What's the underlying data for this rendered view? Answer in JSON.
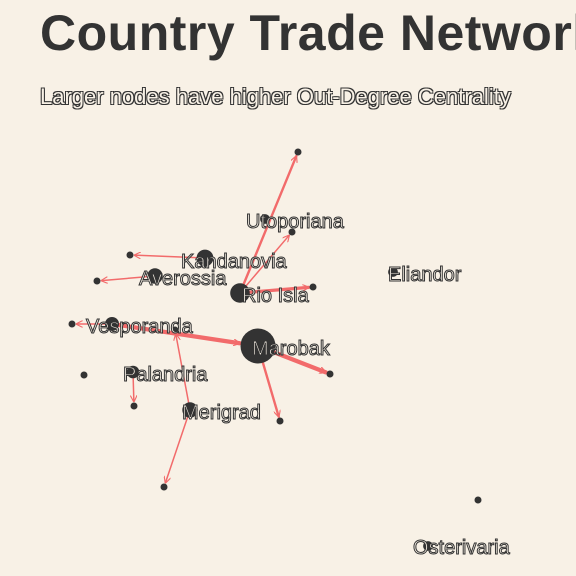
{
  "title": "Country Trade Network",
  "subtitle": "Larger nodes have higher Out-Degree Centrality",
  "colors": {
    "background": "#f8f1e6",
    "node": "#333333",
    "edge": "#f26b6b"
  },
  "nodes": [
    {
      "id": "Marobak",
      "label": "Marobak",
      "centrality": 1.0
    },
    {
      "id": "Rio Isla",
      "label": "Rio Isla",
      "centrality": 0.45
    },
    {
      "id": "Kandanovia",
      "label": "Kandanovia",
      "centrality": 0.35
    },
    {
      "id": "Averossia",
      "label": "Averossia",
      "centrality": 0.3
    },
    {
      "id": "Vesporanda",
      "label": "Vesporanda",
      "centrality": 0.25
    },
    {
      "id": "Merigrad",
      "label": "Merigrad",
      "centrality": 0.3
    },
    {
      "id": "Palandria",
      "label": "Palandria",
      "centrality": 0.2
    },
    {
      "id": "Utoporiana",
      "label": "Utoporiana",
      "centrality": 0.1
    },
    {
      "id": "Eliandor",
      "label": "Eliandor",
      "centrality": 0.1
    },
    {
      "id": "Osterivaria",
      "label": "Osterivaria",
      "centrality": 0.1
    },
    {
      "id": "n1",
      "label": "",
      "centrality": 0.0
    },
    {
      "id": "n2",
      "label": "",
      "centrality": 0.0
    },
    {
      "id": "n3",
      "label": "",
      "centrality": 0.0
    },
    {
      "id": "n4",
      "label": "",
      "centrality": 0.0
    },
    {
      "id": "n5",
      "label": "",
      "centrality": 0.0
    },
    {
      "id": "n6",
      "label": "",
      "centrality": 0.0
    },
    {
      "id": "n7",
      "label": "",
      "centrality": 0.0
    },
    {
      "id": "n8",
      "label": "",
      "centrality": 0.0
    },
    {
      "id": "n9",
      "label": "",
      "centrality": 0.0
    },
    {
      "id": "n10",
      "label": "",
      "centrality": 0.0
    },
    {
      "id": "n11",
      "label": "",
      "centrality": 0.0
    },
    {
      "id": "n12",
      "label": "",
      "centrality": 0.0
    },
    {
      "id": "n13",
      "label": "",
      "centrality": 0.0
    }
  ],
  "edges": [
    {
      "source": "Marobak",
      "target": "n2",
      "weight": 4
    },
    {
      "source": "Marobak",
      "target": "n4",
      "weight": 2
    },
    {
      "source": "Vesporanda",
      "target": "Marobak",
      "weight": 4
    },
    {
      "source": "Rio Isla",
      "target": "n3",
      "weight": 3
    },
    {
      "source": "Rio Isla",
      "target": "n1",
      "weight": 2
    },
    {
      "source": "Rio Isla",
      "target": "n5",
      "weight": 1
    },
    {
      "source": "Kandanovia",
      "target": "n6",
      "weight": 1
    },
    {
      "source": "Averossia",
      "target": "n7",
      "weight": 1
    },
    {
      "source": "Merigrad",
      "target": "n13",
      "weight": 1
    },
    {
      "source": "Merigrad",
      "target": "n12",
      "weight": 1
    },
    {
      "source": "Palandria",
      "target": "n10",
      "weight": 1
    },
    {
      "source": "Vesporanda",
      "target": "n8",
      "weight": 1
    }
  ]
}
